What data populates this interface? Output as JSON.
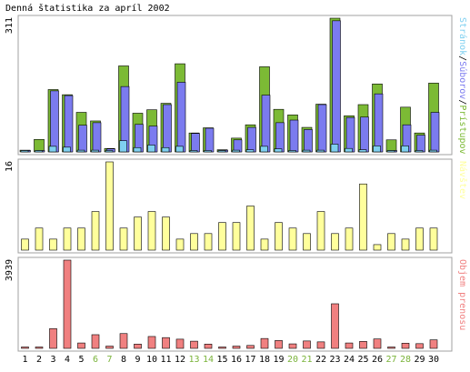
{
  "title": "Denná štatistika za apríl 2002",
  "days": [
    "1",
    "2",
    "3",
    "4",
    "5",
    "6",
    "7",
    "8",
    "9",
    "10",
    "11",
    "12",
    "13",
    "14",
    "15",
    "16",
    "17",
    "18",
    "19",
    "20",
    "21",
    "22",
    "23",
    "24",
    "25",
    "26",
    "27",
    "28",
    "29",
    "30"
  ],
  "weekend_days": [
    "6",
    "7",
    "13",
    "14",
    "20",
    "21",
    "27",
    "28"
  ],
  "colors": {
    "accesses": "#7cba35",
    "files": "#7b7bef",
    "pages": "#7fd0f0",
    "visits": "#ffff9c",
    "transfer": "#f08080",
    "weekday_label": "#000000",
    "weekend_label": "#7ab33a",
    "frame": "#a0a0a0"
  },
  "chart_data": [
    {
      "type": "bar",
      "panel": "traffic",
      "ymax_label": "311",
      "ylim": [
        0,
        311
      ],
      "legend": [
        {
          "label": "Prístupov",
          "color": "#7cba35"
        },
        {
          "label": "Súborov",
          "color": "#7b7bef"
        },
        {
          "label": "Stránok",
          "color": "#7fd0f0"
        }
      ],
      "series": [
        {
          "name": "Prístupov",
          "values": [
            4,
            29,
            145,
            133,
            92,
            72,
            8,
            200,
            90,
            98,
            113,
            205,
            44,
            56,
            5,
            32,
            63,
            198,
            99,
            86,
            57,
            111,
            311,
            84,
            110,
            158,
            28,
            104,
            44,
            160
          ]
        },
        {
          "name": "Súborov",
          "values": [
            2,
            3,
            142,
            131,
            62,
            68,
            7,
            152,
            64,
            60,
            110,
            162,
            43,
            55,
            4,
            28,
            57,
            132,
            68,
            74,
            52,
            110,
            305,
            80,
            81,
            135,
            3,
            63,
            39,
            92
          ]
        },
        {
          "name": "Stránok",
          "values": [
            1,
            2,
            13,
            11,
            4,
            4,
            3,
            26,
            10,
            16,
            10,
            13,
            2,
            2,
            1,
            4,
            5,
            13,
            7,
            3,
            4,
            4,
            18,
            8,
            5,
            14,
            1,
            14,
            3,
            4
          ]
        }
      ]
    },
    {
      "type": "bar",
      "panel": "visits",
      "ymax_label": "16",
      "ylim": [
        0,
        16
      ],
      "legend": [
        {
          "label": "Návštev",
          "color": "#ffff9c"
        }
      ],
      "series": [
        {
          "name": "Návštev",
          "values": [
            2,
            4,
            2,
            4,
            4,
            7,
            16,
            4,
            6,
            7,
            6,
            2,
            3,
            3,
            5,
            5,
            8,
            2,
            5,
            4,
            3,
            7,
            3,
            4,
            12,
            1,
            3,
            2,
            4,
            4
          ]
        }
      ]
    },
    {
      "type": "bar",
      "panel": "transfer",
      "ymax_label": "3939",
      "ylim": [
        0,
        3939
      ],
      "legend": [
        {
          "label": "Objem prenosu",
          "color": "#f08080"
        }
      ],
      "series": [
        {
          "name": "Objem prenosu",
          "values": [
            40,
            40,
            880,
            3939,
            240,
            610,
            100,
            660,
            190,
            530,
            480,
            410,
            320,
            190,
            60,
            100,
            130,
            440,
            350,
            200,
            330,
            290,
            1990,
            240,
            310,
            420,
            4,
            230,
            210,
            380
          ]
        }
      ]
    }
  ]
}
